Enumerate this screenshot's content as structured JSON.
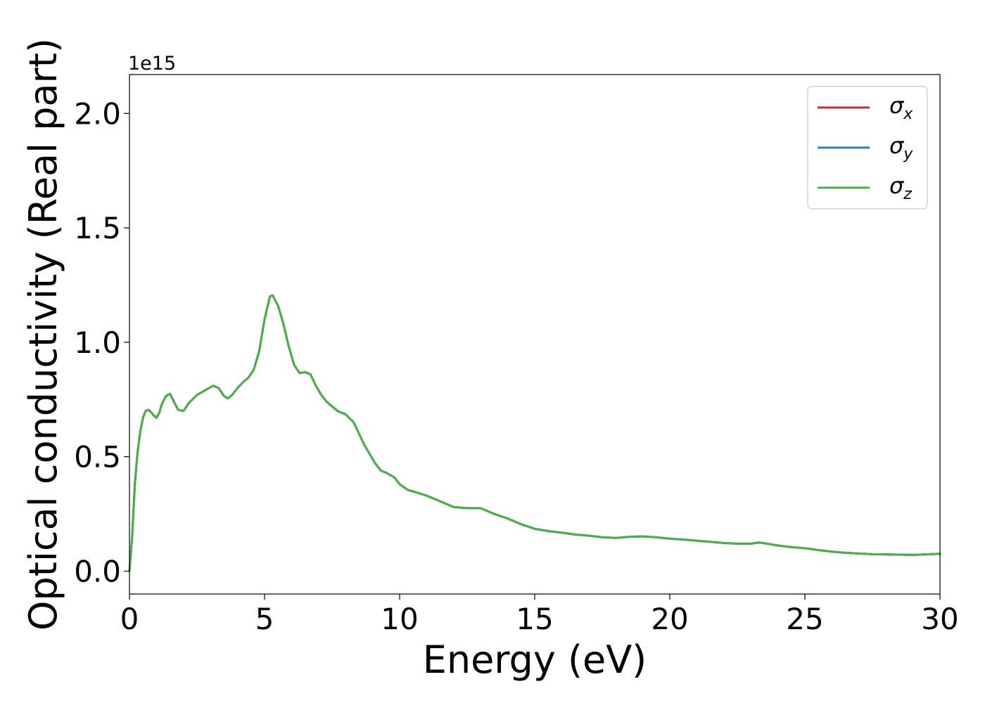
{
  "chart_data": {
    "type": "line",
    "title": "",
    "xlabel": "Energy (eV)",
    "ylabel": "Optical conductivity (Real part)",
    "y_offset_label": "1e15",
    "xlim": [
      0,
      30
    ],
    "ylim": [
      -0.1,
      2.17
    ],
    "xticks": [
      0,
      5,
      10,
      15,
      20,
      25,
      30
    ],
    "xtick_labels": [
      "0",
      "5",
      "10",
      "15",
      "20",
      "25",
      "30"
    ],
    "yticks": [
      0.0,
      0.5,
      1.0,
      1.5,
      2.0
    ],
    "ytick_labels": [
      "0.0",
      "0.5",
      "1.0",
      "1.5",
      "2.0"
    ],
    "grid": false,
    "legend_position": "top-right",
    "x": [
      0,
      0.1,
      0.2,
      0.3,
      0.4,
      0.5,
      0.6,
      0.7,
      0.8,
      0.9,
      1.0,
      1.1,
      1.2,
      1.35,
      1.5,
      1.65,
      1.8,
      2.0,
      2.2,
      2.5,
      2.8,
      3.1,
      3.3,
      3.5,
      3.65,
      3.8,
      4.0,
      4.2,
      4.4,
      4.6,
      4.8,
      5.0,
      5.2,
      5.3,
      5.5,
      5.7,
      5.9,
      6.1,
      6.3,
      6.5,
      6.7,
      6.9,
      7.1,
      7.3,
      7.5,
      7.7,
      8.0,
      8.3,
      8.5,
      8.7,
      8.9,
      9.1,
      9.3,
      9.5,
      9.8,
      10.0,
      10.3,
      10.6,
      11.0,
      11.5,
      12.0,
      12.5,
      13.0,
      13.5,
      14.0,
      14.5,
      15.0,
      15.5,
      16.0,
      16.5,
      17.0,
      17.5,
      18.0,
      18.5,
      19.0,
      19.5,
      20.0,
      20.5,
      21.0,
      21.5,
      22.0,
      22.5,
      23.0,
      23.3,
      23.6,
      24.0,
      24.5,
      25.0,
      25.5,
      26.0,
      26.5,
      27.0,
      27.5,
      28.0,
      28.5,
      29.0,
      29.5,
      30.0
    ],
    "series": [
      {
        "name": "σx",
        "legend_symbol": "σ",
        "legend_subscript": "x",
        "color": "#d62728",
        "y": [
          0.0,
          0.15,
          0.38,
          0.52,
          0.61,
          0.67,
          0.7,
          0.705,
          0.695,
          0.68,
          0.67,
          0.69,
          0.73,
          0.765,
          0.775,
          0.74,
          0.705,
          0.7,
          0.735,
          0.77,
          0.79,
          0.81,
          0.8,
          0.765,
          0.755,
          0.77,
          0.8,
          0.825,
          0.845,
          0.88,
          0.96,
          1.1,
          1.2,
          1.205,
          1.16,
          1.08,
          0.98,
          0.9,
          0.865,
          0.87,
          0.86,
          0.81,
          0.77,
          0.74,
          0.72,
          0.7,
          0.685,
          0.65,
          0.6,
          0.55,
          0.51,
          0.47,
          0.44,
          0.43,
          0.41,
          0.38,
          0.355,
          0.345,
          0.33,
          0.305,
          0.28,
          0.275,
          0.275,
          0.25,
          0.23,
          0.205,
          0.185,
          0.175,
          0.168,
          0.16,
          0.155,
          0.148,
          0.145,
          0.15,
          0.152,
          0.148,
          0.142,
          0.138,
          0.133,
          0.128,
          0.123,
          0.12,
          0.12,
          0.125,
          0.12,
          0.112,
          0.105,
          0.1,
          0.092,
          0.085,
          0.08,
          0.077,
          0.074,
          0.073,
          0.072,
          0.071,
          0.073,
          0.076
        ]
      },
      {
        "name": "σy",
        "legend_symbol": "σ",
        "legend_subscript": "y",
        "color": "#377eb8",
        "y": [
          0.0,
          0.15,
          0.38,
          0.52,
          0.61,
          0.67,
          0.7,
          0.705,
          0.695,
          0.68,
          0.67,
          0.69,
          0.73,
          0.765,
          0.775,
          0.74,
          0.705,
          0.7,
          0.735,
          0.77,
          0.79,
          0.81,
          0.8,
          0.765,
          0.755,
          0.77,
          0.8,
          0.825,
          0.845,
          0.88,
          0.96,
          1.1,
          1.2,
          1.205,
          1.16,
          1.08,
          0.98,
          0.9,
          0.865,
          0.87,
          0.86,
          0.81,
          0.77,
          0.74,
          0.72,
          0.7,
          0.685,
          0.65,
          0.6,
          0.55,
          0.51,
          0.47,
          0.44,
          0.43,
          0.41,
          0.38,
          0.355,
          0.345,
          0.33,
          0.305,
          0.28,
          0.275,
          0.275,
          0.25,
          0.23,
          0.205,
          0.185,
          0.175,
          0.168,
          0.16,
          0.155,
          0.148,
          0.145,
          0.15,
          0.152,
          0.148,
          0.142,
          0.138,
          0.133,
          0.128,
          0.123,
          0.12,
          0.12,
          0.125,
          0.12,
          0.112,
          0.105,
          0.1,
          0.092,
          0.085,
          0.08,
          0.077,
          0.074,
          0.073,
          0.072,
          0.071,
          0.073,
          0.076
        ]
      },
      {
        "name": "σz",
        "legend_symbol": "σ",
        "legend_subscript": "z",
        "color": "#4daf4a",
        "y": [
          0.0,
          0.15,
          0.38,
          0.52,
          0.61,
          0.67,
          0.7,
          0.705,
          0.695,
          0.68,
          0.67,
          0.69,
          0.73,
          0.765,
          0.775,
          0.74,
          0.705,
          0.7,
          0.735,
          0.77,
          0.79,
          0.81,
          0.8,
          0.765,
          0.755,
          0.77,
          0.8,
          0.825,
          0.845,
          0.88,
          0.96,
          1.1,
          1.2,
          1.205,
          1.16,
          1.08,
          0.98,
          0.9,
          0.865,
          0.87,
          0.86,
          0.81,
          0.77,
          0.74,
          0.72,
          0.7,
          0.685,
          0.65,
          0.6,
          0.55,
          0.51,
          0.47,
          0.44,
          0.43,
          0.41,
          0.38,
          0.355,
          0.345,
          0.33,
          0.305,
          0.28,
          0.275,
          0.275,
          0.25,
          0.23,
          0.205,
          0.185,
          0.175,
          0.168,
          0.16,
          0.155,
          0.148,
          0.145,
          0.15,
          0.152,
          0.148,
          0.142,
          0.138,
          0.133,
          0.128,
          0.123,
          0.12,
          0.12,
          0.125,
          0.12,
          0.112,
          0.105,
          0.1,
          0.092,
          0.085,
          0.08,
          0.077,
          0.074,
          0.073,
          0.072,
          0.071,
          0.073,
          0.076
        ]
      }
    ]
  }
}
